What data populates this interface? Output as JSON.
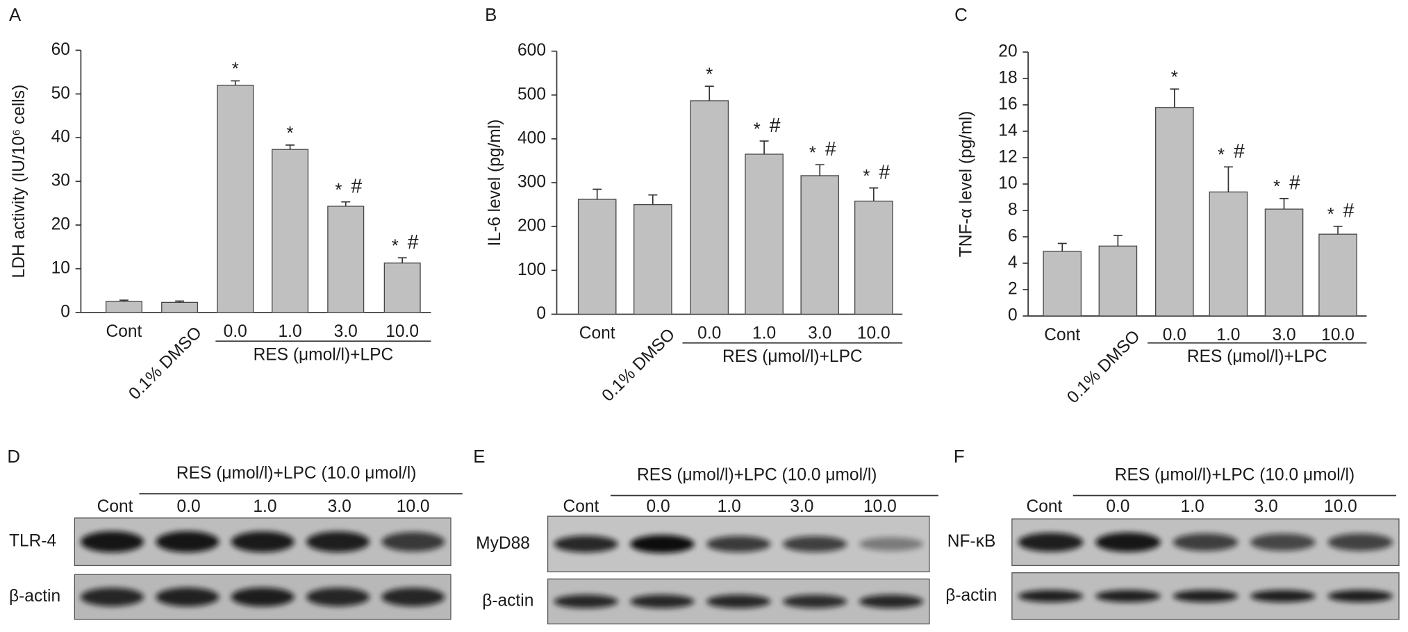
{
  "chart_data": [
    {
      "type": "bar",
      "panel": "A",
      "ylabel": "LDH activity (IU/10⁶ cells)",
      "categories": [
        "Cont",
        "0.1% DMSO",
        "0.0",
        "1.0",
        "3.0",
        "10.0"
      ],
      "values": [
        2.5,
        2.3,
        52,
        37.3,
        24.3,
        11.3
      ],
      "errors": [
        0.3,
        0.3,
        1,
        1,
        1,
        1.2
      ],
      "markers": [
        null,
        null,
        [
          "*"
        ],
        [
          "*"
        ],
        [
          "*",
          "#"
        ],
        [
          "*",
          "#"
        ]
      ],
      "group_label": "RES (μmol/l)+LPC",
      "ylim": [
        0,
        60
      ],
      "yticks": [
        0,
        10,
        20,
        30,
        40,
        50,
        60
      ],
      "color": "#c0c0c0"
    },
    {
      "type": "bar",
      "panel": "B",
      "ylabel": "IL-6 level (pg/ml)",
      "categories": [
        "Cont",
        "0.1% DMSO",
        "0.0",
        "1.0",
        "3.0",
        "10.0"
      ],
      "values": [
        262,
        250,
        487,
        365,
        316,
        258
      ],
      "errors": [
        23,
        22,
        33,
        30,
        25,
        30
      ],
      "markers": [
        null,
        null,
        [
          "*"
        ],
        [
          "*",
          "#"
        ],
        [
          "*",
          "#"
        ],
        [
          "*",
          "#"
        ]
      ],
      "group_label": "RES (μmol/l)+LPC",
      "ylim": [
        0,
        600
      ],
      "yticks": [
        0,
        100,
        200,
        300,
        400,
        500,
        600
      ],
      "color": "#c0c0c0"
    },
    {
      "type": "bar",
      "panel": "C",
      "ylabel": "TNF-α level (pg/ml)",
      "categories": [
        "Cont",
        "0.1% DMSO",
        "0.0",
        "1.0",
        "3.0",
        "10.0"
      ],
      "values": [
        4.9,
        5.3,
        15.8,
        9.4,
        8.1,
        6.2
      ],
      "errors": [
        0.6,
        0.8,
        1.4,
        1.9,
        0.8,
        0.6
      ],
      "markers": [
        null,
        null,
        [
          "*"
        ],
        [
          "*",
          "#"
        ],
        [
          "*",
          "#"
        ],
        [
          "*",
          "#"
        ]
      ],
      "group_label": "RES (μmol/l)+LPC",
      "ylim": [
        0,
        20
      ],
      "yticks": [
        0,
        2,
        4,
        6,
        8,
        10,
        12,
        14,
        16,
        18,
        20
      ],
      "color": "#c0c0c0"
    }
  ],
  "blots": [
    {
      "panel": "D",
      "header": "RES (μmol/l)+LPC (10.0 μmol/l)",
      "lanes": [
        "Cont",
        "0.0",
        "1.0",
        "3.0",
        "10.0"
      ],
      "rows": [
        "TLR-4",
        "β-actin"
      ]
    },
    {
      "panel": "E",
      "header": "RES (μmol/l)+LPC (10.0 μmol/l)",
      "lanes": [
        "Cont",
        "0.0",
        "1.0",
        "3.0",
        "10.0"
      ],
      "rows": [
        "MyD88",
        "β-actin"
      ]
    },
    {
      "panel": "F",
      "header": "RES (μmol/l)+LPC (10.0 μmol/l)",
      "lanes": [
        "Cont",
        "0.0",
        "1.0",
        "3.0",
        "10.0"
      ],
      "rows": [
        "NF-κB",
        "β-actin"
      ]
    }
  ]
}
